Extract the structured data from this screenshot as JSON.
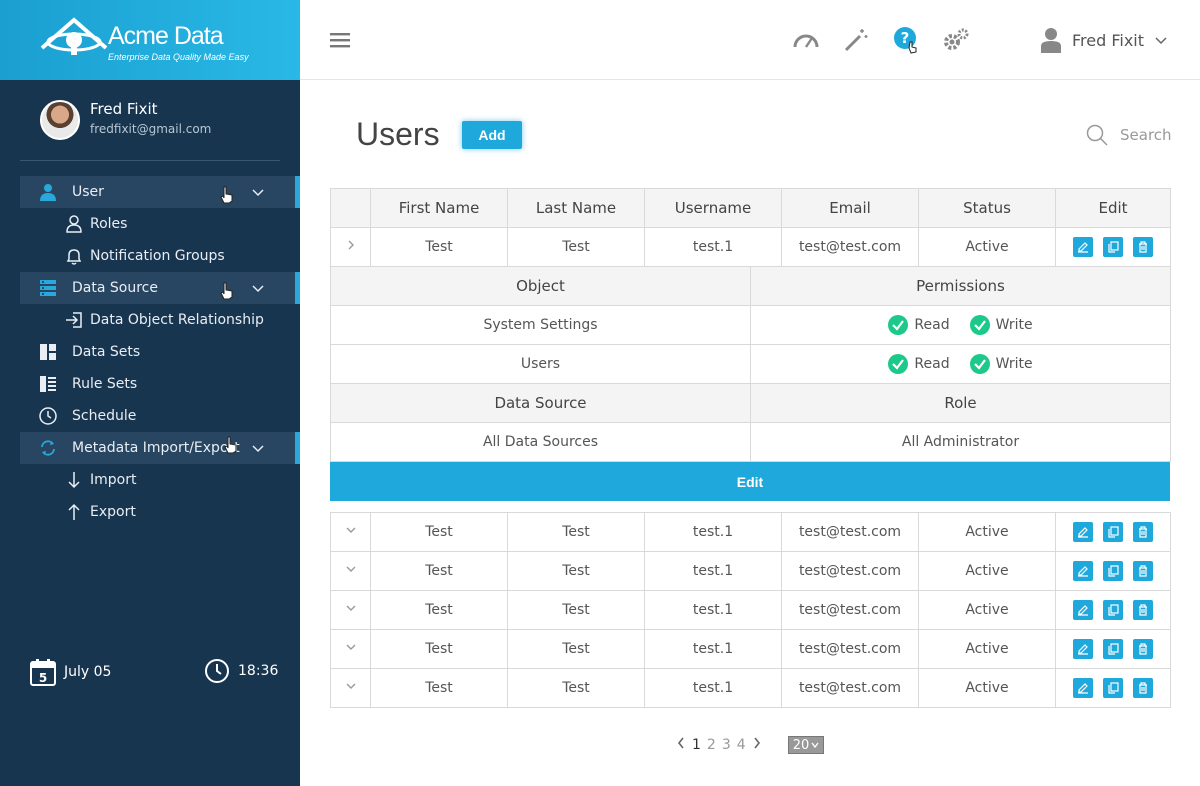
{
  "brand": {
    "name": "Acme Data",
    "tagline": "Enterprise Data Quality Made Easy"
  },
  "profile": {
    "name": "Fred Fixit",
    "email": "fredfixit@gmail.com"
  },
  "sidebar": {
    "items": [
      {
        "label": "User"
      },
      {
        "label": "Roles"
      },
      {
        "label": "Notification Groups"
      },
      {
        "label": "Data Source"
      },
      {
        "label": "Data Object Relationship"
      },
      {
        "label": "Data Sets"
      },
      {
        "label": "Rule Sets"
      },
      {
        "label": "Schedule"
      },
      {
        "label": "Metadata Import/Export"
      },
      {
        "label": "Import"
      },
      {
        "label": "Export"
      }
    ],
    "date": "July 05",
    "date_day": "5",
    "time": "18:36"
  },
  "topbar": {
    "user": "Fred Fixit"
  },
  "page": {
    "title": "Users",
    "add_label": "Add",
    "search_label": "Search"
  },
  "table": {
    "headers": [
      "First Name",
      "Last Name",
      "Username",
      "Email",
      "Status",
      "Edit"
    ],
    "rows": [
      [
        "Test",
        "Test",
        "test.1",
        "test@test.com",
        "Active"
      ],
      [
        "Test",
        "Test",
        "test.1",
        "test@test.com",
        "Active"
      ],
      [
        "Test",
        "Test",
        "test.1",
        "test@test.com",
        "Active"
      ],
      [
        "Test",
        "Test",
        "test.1",
        "test@test.com",
        "Active"
      ],
      [
        "Test",
        "Test",
        "test.1",
        "test@test.com",
        "Active"
      ],
      [
        "Test",
        "Test",
        "test.1",
        "test@test.com",
        "Active"
      ]
    ]
  },
  "detail": {
    "object_header": "Object",
    "permissions_header": "Permissions",
    "permissions": [
      {
        "object": "System Settings",
        "read": "Read",
        "write": "Write"
      },
      {
        "object": "Users",
        "read": "Read",
        "write": "Write"
      }
    ],
    "datasource_header": "Data Source",
    "role_header": "Role",
    "datasource": "All Data Sources",
    "role": "All Administrator",
    "edit_label": "Edit"
  },
  "pager": {
    "pages": [
      "1",
      "2",
      "3",
      "4"
    ],
    "current": "1",
    "page_size": "20"
  },
  "colors": {
    "accent": "#1ea8dc",
    "sidebar": "#183550",
    "check": "#1cc88a"
  }
}
